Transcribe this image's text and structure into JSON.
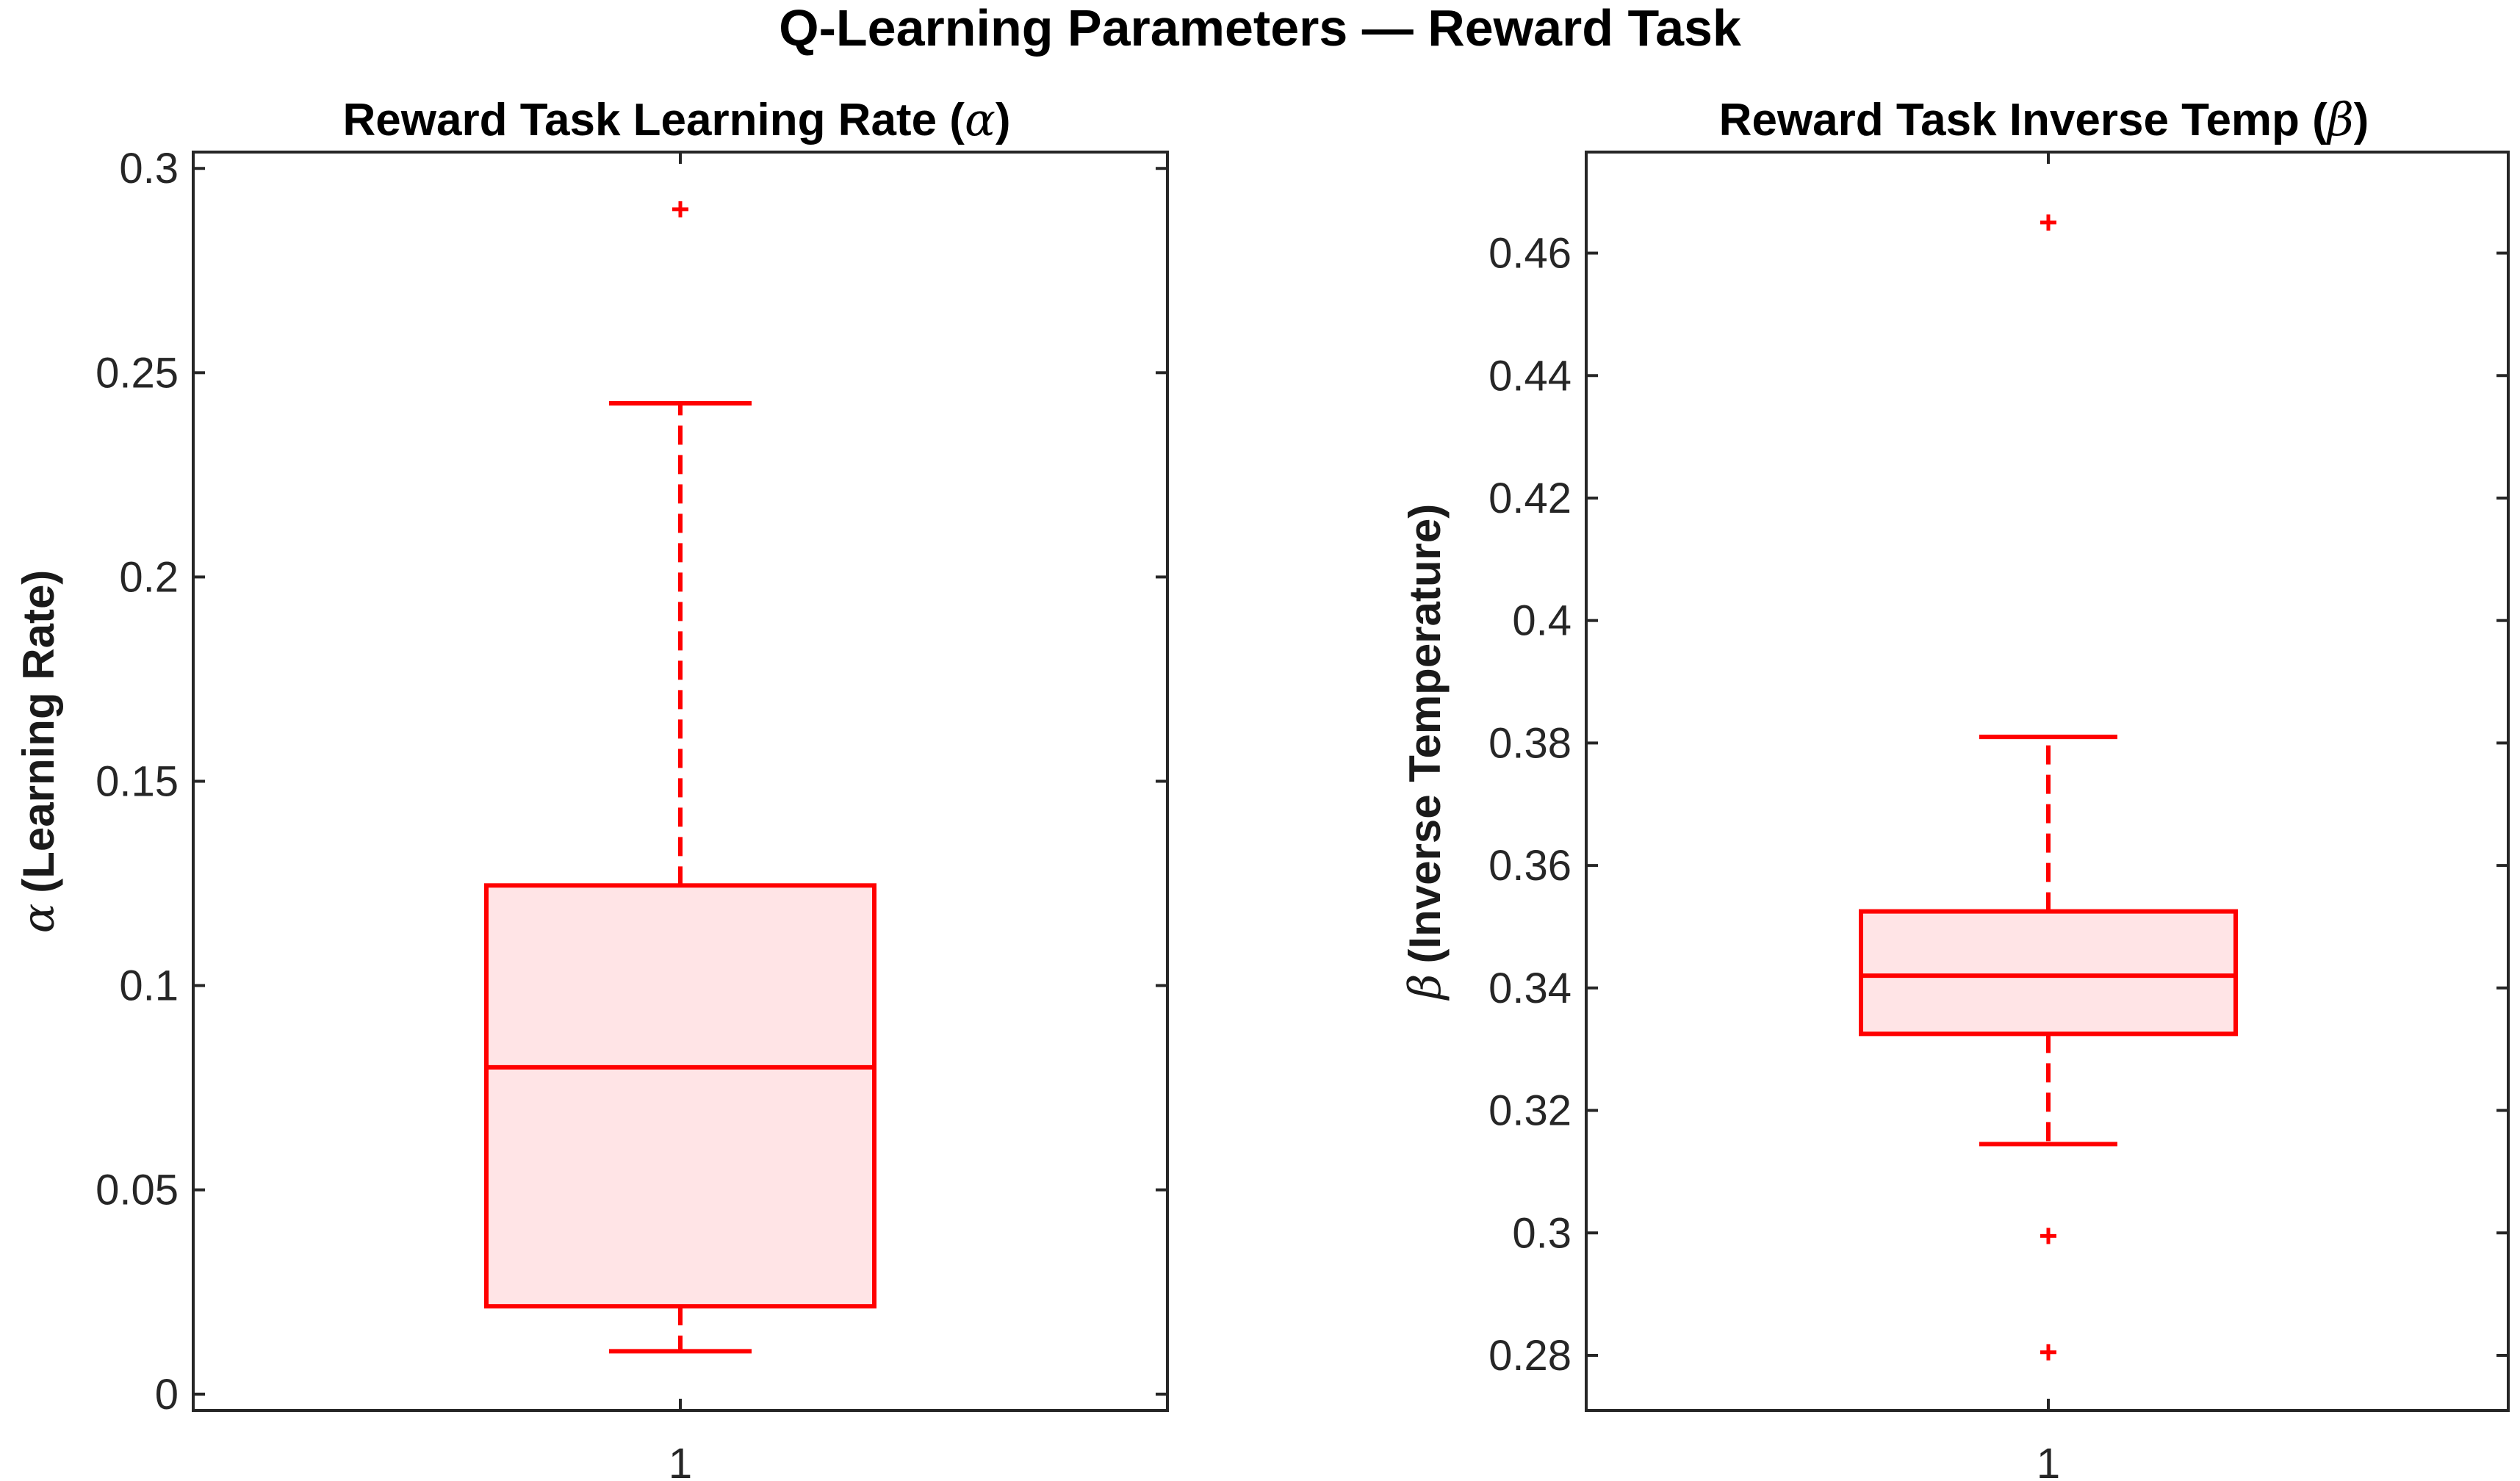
{
  "figure": {
    "suptitle": "Q-Learning Parameters — Reward Task"
  },
  "colors": {
    "box_edge": "#ff0000",
    "box_fill": "#ffe4e6",
    "axis": "#262626",
    "text": "#000000"
  },
  "chart_data": [
    {
      "type": "box",
      "title": "Reward Task Learning Rate (",
      "title_symbol": "α",
      "title_suffix": ")",
      "ylabel": "(Learning Rate)",
      "ylabel_symbol": "α",
      "xlabel": "",
      "categories": [
        "1"
      ],
      "ylim": [
        -0.004,
        0.304
      ],
      "yticks": [
        0,
        0.05,
        0.1,
        0.15,
        0.2,
        0.25,
        0.3
      ],
      "ytick_labels": [
        "0",
        "0.05",
        "0.1",
        "0.15",
        "0.2",
        "0.25",
        "0.3"
      ],
      "grid": false,
      "box": {
        "whisker_low": 0.0105,
        "q1": 0.0215,
        "median": 0.08,
        "q3": 0.1245,
        "whisker_high": 0.2425
      },
      "outliers": [
        0.29
      ]
    },
    {
      "type": "box",
      "title": "Reward Task Inverse Temp (",
      "title_symbol": "β",
      "title_suffix": ")",
      "ylabel": "(Inverse Temperature)",
      "ylabel_symbol": "β",
      "xlabel": "",
      "categories": [
        "1"
      ],
      "ylim": [
        0.271,
        0.4765
      ],
      "yticks": [
        0.28,
        0.3,
        0.32,
        0.34,
        0.36,
        0.38,
        0.4,
        0.42,
        0.44,
        0.46
      ],
      "ytick_labels": [
        "0.28",
        "0.3",
        "0.32",
        "0.34",
        "0.36",
        "0.38",
        "0.4",
        "0.42",
        "0.44",
        "0.46"
      ],
      "grid": false,
      "box": {
        "whisker_low": 0.3145,
        "q1": 0.3325,
        "median": 0.342,
        "q3": 0.3525,
        "whisker_high": 0.381
      },
      "outliers": [
        0.465,
        0.2995,
        0.2805
      ]
    }
  ]
}
